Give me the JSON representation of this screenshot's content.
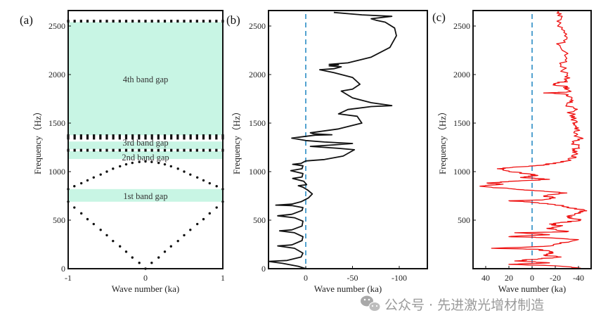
{
  "chart_data": [
    {
      "type": "scatter",
      "panel_label": "(a)",
      "xlabel": "Wave number (ka)",
      "ylabel": "Frequency（Hz）",
      "xlim": [
        -1,
        1
      ],
      "ylim": [
        0,
        2650
      ],
      "xticks": [
        "-1",
        "0",
        "1"
      ],
      "yticks": [
        "0",
        "500",
        "1000",
        "1500",
        "2000",
        "2500"
      ],
      "band_gaps": [
        {
          "label": "1st band gap",
          "range": [
            690,
            820
          ]
        },
        {
          "label": "2nd band gap",
          "range": [
            1130,
            1210
          ]
        },
        {
          "label": "3rd band gap",
          "range": [
            1230,
            1310
          ]
        },
        {
          "label": "4th band gap",
          "range": [
            1375,
            2540
          ]
        }
      ],
      "gap_color": "#c8f5e4",
      "series": [
        {
          "name": "branch-1",
          "k": [
            -1,
            -0.92,
            -0.83,
            -0.75,
            -0.67,
            -0.58,
            -0.5,
            -0.42,
            -0.33,
            -0.25,
            -0.17,
            -0.08,
            0,
            0.08,
            0.17,
            0.25,
            0.33,
            0.42,
            0.5,
            0.58,
            0.67,
            0.75,
            0.83,
            0.92,
            1
          ],
          "f": [
            690,
            630,
            570,
            510,
            460,
            400,
            345,
            285,
            230,
            175,
            115,
            60,
            0,
            60,
            115,
            175,
            230,
            285,
            345,
            400,
            460,
            510,
            570,
            630,
            690
          ]
        },
        {
          "name": "branch-2",
          "k": [
            -1,
            -0.92,
            -0.83,
            -0.75,
            -0.67,
            -0.58,
            -0.5,
            -0.42,
            -0.33,
            -0.25,
            -0.17,
            -0.08,
            0,
            0.08,
            0.17,
            0.25,
            0.33,
            0.42,
            0.5,
            0.58,
            0.67,
            0.75,
            0.83,
            0.92,
            1
          ],
          "f": [
            820,
            850,
            880,
            910,
            940,
            970,
            1000,
            1030,
            1055,
            1075,
            1090,
            1100,
            1105,
            1100,
            1090,
            1075,
            1055,
            1030,
            1000,
            970,
            940,
            910,
            880,
            850,
            820
          ]
        },
        {
          "name": "flat-1220",
          "f_const": 1220
        },
        {
          "name": "flat-1345",
          "f_const": 1345
        },
        {
          "name": "flat-1370",
          "f_const": 1370
        },
        {
          "name": "flat-2550",
          "f_const": 2550
        }
      ]
    },
    {
      "type": "line",
      "panel_label": "(b)",
      "xlabel": "Wave number (ka)",
      "ylabel": "Frequency（Hz）",
      "xlim": [
        40,
        -130
      ],
      "ylim": [
        0,
        2650
      ],
      "xticks": [
        "0",
        "-50",
        "-100"
      ],
      "xtick_values": [
        0,
        -50,
        -100
      ],
      "yticks": [
        "0",
        "500",
        "1000",
        "1500",
        "2000",
        "2500"
      ],
      "reference_line": 0,
      "reference_color": "#2a8cc4",
      "line_color": "#111111",
      "series": [
        {
          "name": "wave-number",
          "points": [
            [
              0,
              0
            ],
            [
              8,
              25
            ],
            [
              25,
              55
            ],
            [
              40,
              75
            ],
            [
              20,
              85
            ],
            [
              5,
              120
            ],
            [
              3,
              160
            ],
            [
              12,
              210
            ],
            [
              30,
              235
            ],
            [
              15,
              245
            ],
            [
              4,
              290
            ],
            [
              3,
              330
            ],
            [
              12,
              370
            ],
            [
              28,
              390
            ],
            [
              15,
              400
            ],
            [
              4,
              440
            ],
            [
              3,
              490
            ],
            [
              12,
              525
            ],
            [
              30,
              545
            ],
            [
              15,
              560
            ],
            [
              4,
              600
            ],
            [
              3,
              630
            ],
            [
              15,
              650
            ],
            [
              32,
              655
            ],
            [
              15,
              665
            ],
            [
              5,
              690
            ],
            [
              -3,
              730
            ],
            [
              -7,
              770
            ],
            [
              -2,
              810
            ],
            [
              3,
              840
            ],
            [
              8,
              855
            ],
            [
              -1,
              865
            ],
            [
              2,
              900
            ],
            [
              14,
              930
            ],
            [
              4,
              945
            ],
            [
              3,
              980
            ],
            [
              16,
              1010
            ],
            [
              4,
              1030
            ],
            [
              3,
              1060
            ],
            [
              14,
              1075
            ],
            [
              5,
              1085
            ],
            [
              2,
              1100
            ],
            [
              0,
              1110
            ],
            [
              -20,
              1125
            ],
            [
              -40,
              1160
            ],
            [
              -52,
              1225
            ],
            [
              -35,
              1240
            ],
            [
              -5,
              1260
            ],
            [
              -30,
              1275
            ],
            [
              -50,
              1290
            ],
            [
              -20,
              1305
            ],
            [
              0,
              1320
            ],
            [
              15,
              1345
            ],
            [
              3,
              1360
            ],
            [
              -10,
              1375
            ],
            [
              -28,
              1380
            ],
            [
              -8,
              1390
            ],
            [
              -5,
              1400
            ],
            [
              -35,
              1440
            ],
            [
              -60,
              1500
            ],
            [
              -55,
              1570
            ],
            [
              -35,
              1595
            ],
            [
              -45,
              1640
            ],
            [
              -70,
              1670
            ],
            [
              -92,
              1680
            ],
            [
              -70,
              1710
            ],
            [
              -50,
              1760
            ],
            [
              -38,
              1830
            ],
            [
              -50,
              1850
            ],
            [
              -58,
              1900
            ],
            [
              -50,
              1970
            ],
            [
              -30,
              2020
            ],
            [
              -15,
              2050
            ],
            [
              -30,
              2060
            ],
            [
              -38,
              2080
            ],
            [
              -25,
              2090
            ],
            [
              -35,
              2100
            ],
            [
              -25,
              2105
            ],
            [
              -45,
              2120
            ],
            [
              -70,
              2180
            ],
            [
              -90,
              2280
            ],
            [
              -97,
              2400
            ],
            [
              -95,
              2480
            ],
            [
              -85,
              2540
            ],
            [
              -75,
              2560
            ],
            [
              -70,
              2575
            ],
            [
              -92,
              2600
            ],
            [
              -60,
              2615
            ],
            [
              -30,
              2640
            ]
          ]
        }
      ]
    },
    {
      "type": "line",
      "panel_label": "(c)",
      "xlabel": "Wave number (ka)",
      "ylabel": "Frequency（Hz）",
      "xlim": [
        50,
        -50
      ],
      "ylim": [
        0,
        2650
      ],
      "xticks": [
        "40",
        "20",
        "0",
        "-20",
        "-40"
      ],
      "xtick_values": [
        40,
        20,
        0,
        -20,
        -40
      ],
      "yticks": [
        "500",
        "1000",
        "1500",
        "2000",
        "2500"
      ],
      "reference_line": 0,
      "reference_color": "#2a8cc4",
      "line_color": "#ee1111",
      "series": [
        {
          "name": "measured-wave-number",
          "points": [
            [
              -42,
              5
            ],
            [
              -20,
              30
            ],
            [
              20,
              45
            ],
            [
              -15,
              60
            ],
            [
              15,
              80
            ],
            [
              -5,
              100
            ],
            [
              -25,
              120
            ],
            [
              -10,
              140
            ],
            [
              -18,
              170
            ],
            [
              -5,
              200
            ],
            [
              35,
              210
            ],
            [
              -10,
              230
            ],
            [
              -25,
              260
            ],
            [
              -40,
              300
            ],
            [
              -10,
              320
            ],
            [
              20,
              330
            ],
            [
              -15,
              350
            ],
            [
              15,
              370
            ],
            [
              -30,
              380
            ],
            [
              -15,
              410
            ],
            [
              -25,
              440
            ],
            [
              -15,
              460
            ],
            [
              -30,
              480
            ],
            [
              -40,
              500
            ],
            [
              -30,
              540
            ],
            [
              -40,
              580
            ],
            [
              -45,
              600
            ],
            [
              -30,
              630
            ],
            [
              -20,
              660
            ],
            [
              -5,
              680
            ],
            [
              20,
              700
            ],
            [
              -10,
              710
            ],
            [
              -20,
              730
            ],
            [
              -10,
              750
            ],
            [
              -30,
              780
            ],
            [
              -10,
              800
            ],
            [
              15,
              820
            ],
            [
              45,
              850
            ],
            [
              25,
              870
            ],
            [
              38,
              880
            ],
            [
              20,
              900
            ],
            [
              -15,
              920
            ],
            [
              10,
              940
            ],
            [
              -5,
              960
            ],
            [
              5,
              980
            ],
            [
              20,
              1000
            ],
            [
              30,
              1030
            ],
            [
              10,
              1050
            ],
            [
              -10,
              1070
            ],
            [
              -20,
              1090
            ],
            [
              -30,
              1110
            ],
            [
              -38,
              1150
            ],
            [
              -35,
              1200
            ],
            [
              -40,
              1250
            ],
            [
              -36,
              1300
            ],
            [
              -42,
              1350
            ],
            [
              -36,
              1400
            ],
            [
              -40,
              1450
            ],
            [
              -35,
              1500
            ],
            [
              -38,
              1550
            ],
            [
              -33,
              1600
            ],
            [
              -36,
              1650
            ],
            [
              -30,
              1700
            ],
            [
              -34,
              1750
            ],
            [
              -28,
              1800
            ],
            [
              -10,
              1810
            ],
            [
              -30,
              1820
            ],
            [
              -32,
              1860
            ],
            [
              -20,
              1900
            ],
            [
              -28,
              1930
            ],
            [
              -30,
              2000
            ],
            [
              -25,
              2100
            ],
            [
              -28,
              2200
            ],
            [
              -24,
              2300
            ],
            [
              -28,
              2400
            ],
            [
              -22,
              2500
            ],
            [
              -26,
              2600
            ],
            [
              -22,
              2650
            ]
          ]
        }
      ]
    }
  ],
  "watermark": {
    "icon": "wechat-icon",
    "text": "公众号 · 先进激光增材制造"
  }
}
